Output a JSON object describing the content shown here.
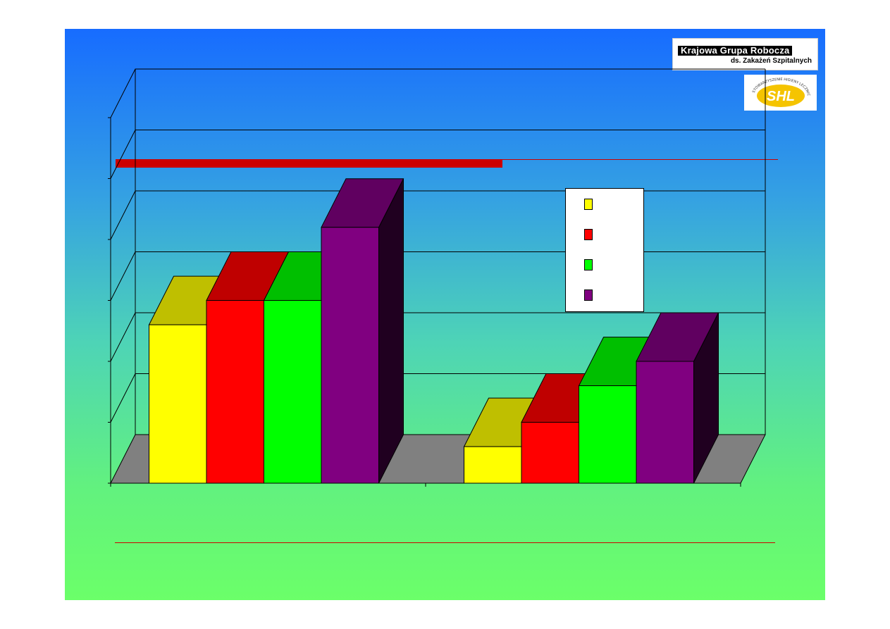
{
  "logos": {
    "krajowa_line1": "Krajowa Grupa Robocza",
    "krajowa_line2": "ds. Zakażeń Szpitalnych",
    "shl_text": "SHL",
    "shl_ring_text": "STOWARZYSZENIE HIGIENY LECZNICTWA"
  },
  "colors": {
    "background_top": "#176cff",
    "background_bottom": "#6bff69",
    "accent_red": "#cc0000",
    "floor": "#808080"
  },
  "chart_data": {
    "type": "bar",
    "style": "3d-clustered",
    "title": "",
    "xlabel": "",
    "ylabel": "",
    "categories": [
      "",
      ""
    ],
    "ylim": [
      0,
      6
    ],
    "grid": true,
    "legend_position": "top-right",
    "series": [
      {
        "name": "",
        "color": "#ffff00",
        "values": [
          2.6,
          0.6
        ]
      },
      {
        "name": "",
        "color": "#ff0000",
        "values": [
          3.0,
          1.0
        ]
      },
      {
        "name": "",
        "color": "#00ff00",
        "values": [
          3.0,
          1.6
        ]
      },
      {
        "name": "",
        "color": "#800080",
        "values": [
          4.2,
          2.0
        ]
      }
    ]
  }
}
